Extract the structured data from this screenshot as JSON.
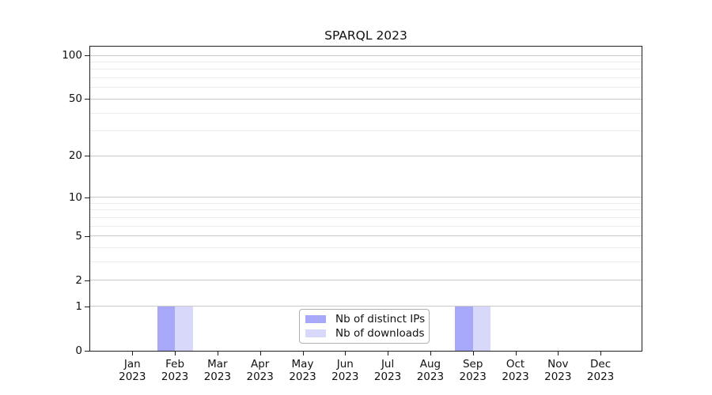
{
  "chart_data": {
    "type": "bar",
    "title": "SPARQL 2023",
    "categories": [
      "Jan 2023",
      "Feb 2023",
      "Mar 2023",
      "Apr 2023",
      "May 2023",
      "Jun 2023",
      "Jul 2023",
      "Aug 2023",
      "Sep 2023",
      "Oct 2023",
      "Nov 2023",
      "Dec 2023"
    ],
    "series": [
      {
        "name": "Nb of distinct IPs",
        "color": "#a8a8f8",
        "values": [
          0,
          1,
          0,
          0,
          0,
          0,
          0,
          0,
          1,
          0,
          0,
          0
        ]
      },
      {
        "name": "Nb of downloads",
        "color": "#d8d8fa",
        "values": [
          0,
          1,
          0,
          0,
          0,
          0,
          0,
          0,
          1,
          0,
          0,
          0
        ]
      }
    ],
    "y_axis": {
      "scale": "log1p",
      "major_ticks": [
        0,
        1,
        2,
        5,
        10,
        20,
        50,
        100
      ],
      "minor_ticks": [
        3,
        4,
        6,
        7,
        8,
        9,
        30,
        40,
        60,
        70,
        80,
        90
      ],
      "ylim": [
        0,
        115
      ]
    },
    "x_axis": {
      "tick_label_lines": 2
    },
    "legend": {
      "position": "lower center"
    },
    "grid": true,
    "colors": {
      "major_grid": "#c9c9c9",
      "minor_grid": "#ececec",
      "spine": "#1f1f1f",
      "background": "#ffffff"
    }
  }
}
